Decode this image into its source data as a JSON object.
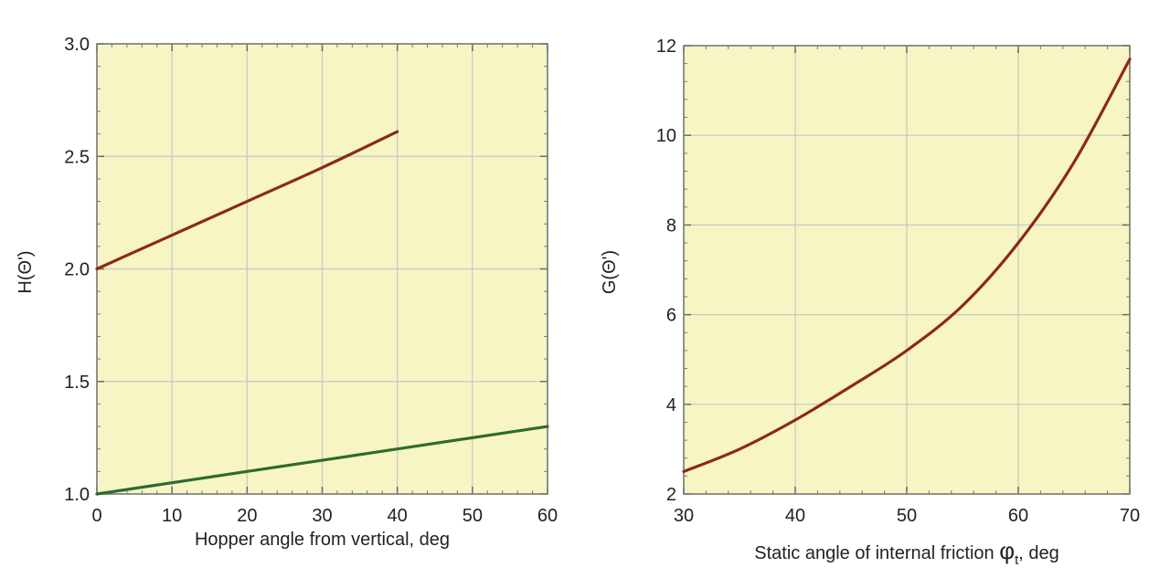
{
  "chart_data": [
    {
      "type": "line",
      "xlabel": "Hopper angle from vertical, deg",
      "ylabel": "H(Θ')",
      "xlim": [
        0,
        60
      ],
      "ylim": [
        1.0,
        3.0
      ],
      "xticks": [
        "0",
        "10",
        "20",
        "30",
        "40",
        "50",
        "60"
      ],
      "yticks": [
        "1.0",
        "1.5",
        "2.0",
        "2.5",
        "3.0"
      ],
      "grid": true,
      "background": "#f7f5c4",
      "series": [
        {
          "color": "#8b2a14",
          "x": [
            0,
            10,
            20,
            30,
            40
          ],
          "y": [
            2.0,
            2.15,
            2.3,
            2.45,
            2.61
          ]
        },
        {
          "color": "#2e6b2e",
          "x": [
            0,
            10,
            20,
            30,
            40,
            50,
            60
          ],
          "y": [
            1.0,
            1.05,
            1.1,
            1.15,
            1.2,
            1.25,
            1.3
          ]
        }
      ]
    },
    {
      "type": "line",
      "xlabel": "Static angle of internal friction φt, deg",
      "xlabel_parts": {
        "main": "Static angle of internal friction ",
        "symbol": "φ",
        "sub": "t",
        "tail": ", deg"
      },
      "ylabel": "G(Θ')",
      "xlim": [
        30,
        70
      ],
      "ylim": [
        2,
        12
      ],
      "xticks": [
        "30",
        "40",
        "50",
        "60",
        "70"
      ],
      "yticks": [
        "2",
        "4",
        "6",
        "8",
        "10",
        "12"
      ],
      "grid": true,
      "background": "#f7f5c4",
      "series": [
        {
          "color": "#8b2a14",
          "x": [
            30,
            35,
            40,
            45,
            50,
            55,
            60,
            65,
            70
          ],
          "y": [
            2.5,
            3.0,
            3.65,
            4.4,
            5.2,
            6.2,
            7.6,
            9.4,
            11.7
          ]
        }
      ]
    }
  ]
}
